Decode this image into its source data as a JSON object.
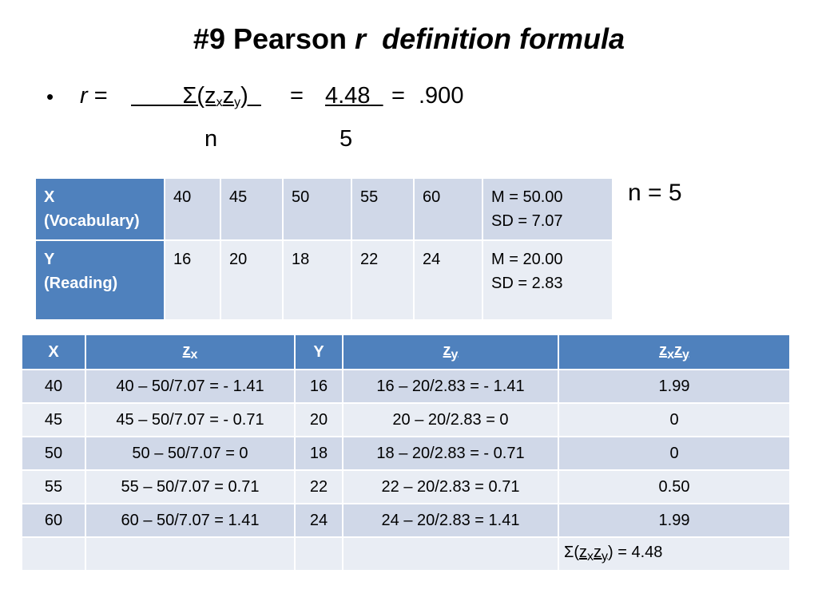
{
  "title": {
    "prefix": "#9  Pearson ",
    "r": "r",
    "suffix": "definition formula"
  },
  "formula": {
    "bullet": "•",
    "r_label": "r",
    "eq1": "=",
    "sigma_open": "Σ(z",
    "sub_x": "x",
    "z": "z",
    "sub_y": "y",
    "close": ")",
    "eq2": "=",
    "numerator_value": "4.48",
    "eq3": "=",
    "result": ".900",
    "denominator_symbol": "n",
    "denominator_value": "5"
  },
  "n_label": "n = 5",
  "table1": {
    "rows": [
      {
        "header_line1": "X",
        "header_line2": "(Vocabulary)",
        "values": [
          "40",
          "45",
          "50",
          "55",
          "60"
        ],
        "stats_line1": "M = 50.00",
        "stats_line2": "SD = 7.07"
      },
      {
        "header_line1": "Y",
        "header_line2": "(Reading)",
        "values": [
          "16",
          "20",
          "18",
          "22",
          "24"
        ],
        "stats_line1": "M = 20.00",
        "stats_line2": "SD = 2.83"
      }
    ]
  },
  "table2": {
    "headers": {
      "x": "X",
      "zx_z": "z",
      "zx_sub": "x",
      "y": "Y",
      "zy_z": "z",
      "zy_sub": "y",
      "prod_z1": "z",
      "prod_sub1": "x",
      "prod_z2": "z",
      "prod_sub2": "y"
    },
    "rows": [
      {
        "x": "40",
        "zx": "40 – 50/7.07 = - 1.41",
        "y": "16",
        "zy": "16 – 20/2.83 = - 1.41",
        "prod": "1.99"
      },
      {
        "x": "45",
        "zx": "45 – 50/7.07 = - 0.71",
        "y": "20",
        "zy": "20 – 20/2.83 = 0",
        "prod": "0"
      },
      {
        "x": "50",
        "zx": "50 – 50/7.07 = 0",
        "y": "18",
        "zy": "18 – 20/2.83 = - 0.71",
        "prod": "0"
      },
      {
        "x": "55",
        "zx": "55 – 50/7.07 = 0.71",
        "y": "22",
        "zy": "22 – 20/2.83 = 0.71",
        "prod": "0.50"
      },
      {
        "x": "60",
        "zx": "60 – 50/7.07 = 1.41",
        "y": "24",
        "zy": "24 – 20/2.83 = 1.41",
        "prod": "1.99"
      }
    ],
    "sum": {
      "prefix": "Σ(",
      "z1": "z",
      "sub1": "x",
      "z2": "z",
      "sub2": "y",
      "suffix": ") = 4.48"
    }
  },
  "colors": {
    "header_blue": "#4f81bd",
    "row_dark": "#d0d8e8",
    "row_light": "#e9edf4"
  }
}
